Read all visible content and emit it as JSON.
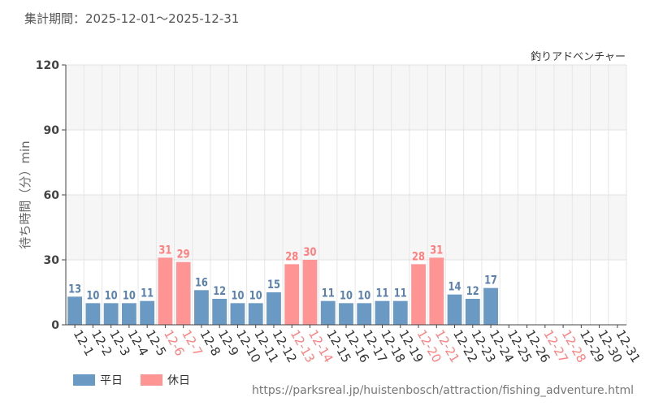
{
  "header": {
    "period": "集計期間：2025-12-01～2025-12-31"
  },
  "source_url": "https://parksreal.jp/huistenbosch/attraction/fishing_adventure.html",
  "colors": {
    "weekday": "#6a9ac4",
    "holiday": "#ff9494",
    "weekday_label": "#5b82ad",
    "holiday_label": "#ff7f7f"
  },
  "chart_data": {
    "type": "bar",
    "title": "釣りアドベンチャー",
    "xlabel": "",
    "ylabel": "待ち時間（分）min",
    "ylim": [
      0,
      120
    ],
    "yticks": [
      0,
      30,
      60,
      90,
      120
    ],
    "categories": [
      "12-1",
      "12-2",
      "12-3",
      "12-4",
      "12-5",
      "12-6",
      "12-7",
      "12-8",
      "12-9",
      "12-10",
      "12-11",
      "12-12",
      "12-13",
      "12-14",
      "12-15",
      "12-16",
      "12-17",
      "12-18",
      "12-19",
      "12-20",
      "12-21",
      "12-22",
      "12-23",
      "12-24",
      "12-25",
      "12-26",
      "12-27",
      "12-28",
      "12-29",
      "12-30",
      "12-31"
    ],
    "values": [
      13,
      10,
      10,
      10,
      11,
      31,
      29,
      16,
      12,
      10,
      10,
      15,
      28,
      30,
      11,
      10,
      10,
      11,
      11,
      28,
      31,
      14,
      12,
      17,
      null,
      null,
      null,
      null,
      null,
      null,
      null
    ],
    "holiday": [
      false,
      false,
      false,
      false,
      false,
      true,
      true,
      false,
      false,
      false,
      false,
      false,
      true,
      true,
      false,
      false,
      false,
      false,
      false,
      true,
      true,
      false,
      false,
      false,
      false,
      false,
      true,
      true,
      false,
      false,
      false
    ],
    "legend": [
      {
        "label": "平日",
        "color": "#6a9ac4"
      },
      {
        "label": "休日",
        "color": "#ff9494"
      }
    ]
  }
}
